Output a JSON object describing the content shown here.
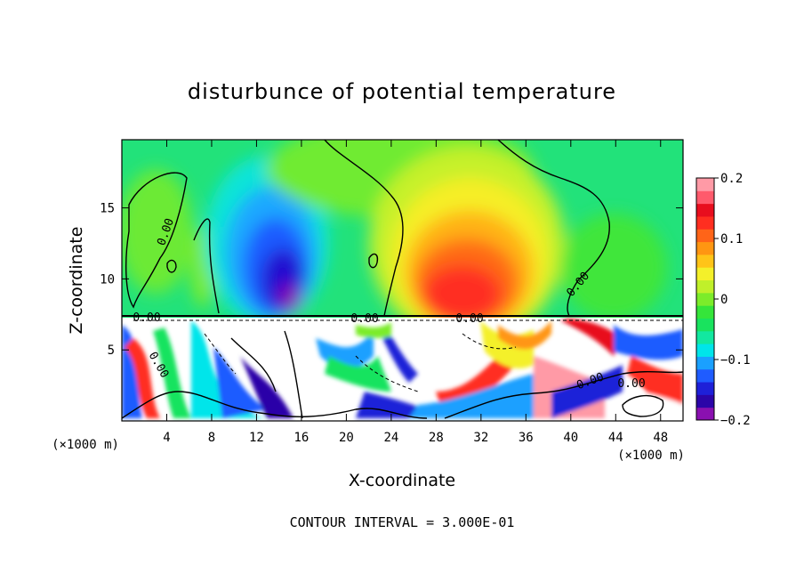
{
  "chart_data": {
    "type": "heatmap",
    "title": "disturbunce of potential temperature",
    "xlabel": "X-coordinate",
    "ylabel": "Z-coordinate",
    "x_unit": "(×1000 m)",
    "x_unit_right": "(×1000 m)",
    "x_ticks": [
      4,
      8,
      12,
      16,
      20,
      24,
      28,
      32,
      36,
      40,
      44,
      48
    ],
    "y_ticks": [
      5,
      10,
      15
    ],
    "xlim": [
      0,
      50
    ],
    "ylim": [
      0,
      19.8
    ],
    "colorbar": {
      "ticks": [
        "0.2",
        "0.1",
        "0",
        "−0.1",
        "−0.2"
      ],
      "tick_values": [
        0.2,
        0.1,
        0,
        -0.1,
        -0.2
      ],
      "range": [
        -0.2,
        0.2
      ],
      "colors": [
        "#8a10b0",
        "#2b05a8",
        "#1e20d8",
        "#1f5cff",
        "#1aa0ff",
        "#00e5ea",
        "#12e8a0",
        "#19e35e",
        "#35e53a",
        "#7cec2a",
        "#c0f02a",
        "#f4f02a",
        "#ffc418",
        "#ff9612",
        "#ff6418",
        "#ff2e20",
        "#e80e1e",
        "#ff5a6c",
        "#ff9aa6"
      ]
    },
    "contour_labels": [
      "0.00",
      "0.00",
      "0.00",
      "0.00",
      "0.00",
      "0.00",
      "0.00",
      "0.00"
    ],
    "footnote": "CONTOUR INTERVAL = 3.000E-01",
    "grid": false
  }
}
